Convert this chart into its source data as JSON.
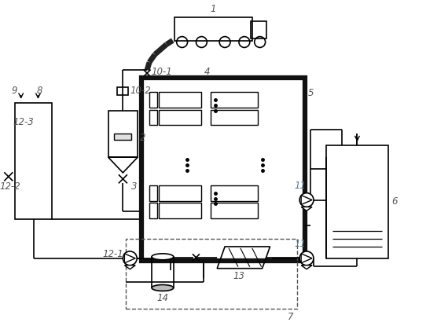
{
  "bg_color": "#ffffff",
  "lc": "#000000",
  "lbl": "#555555",
  "fs": 8.5,
  "fig_w": 5.42,
  "fig_h": 4.15,
  "dpi": 100
}
